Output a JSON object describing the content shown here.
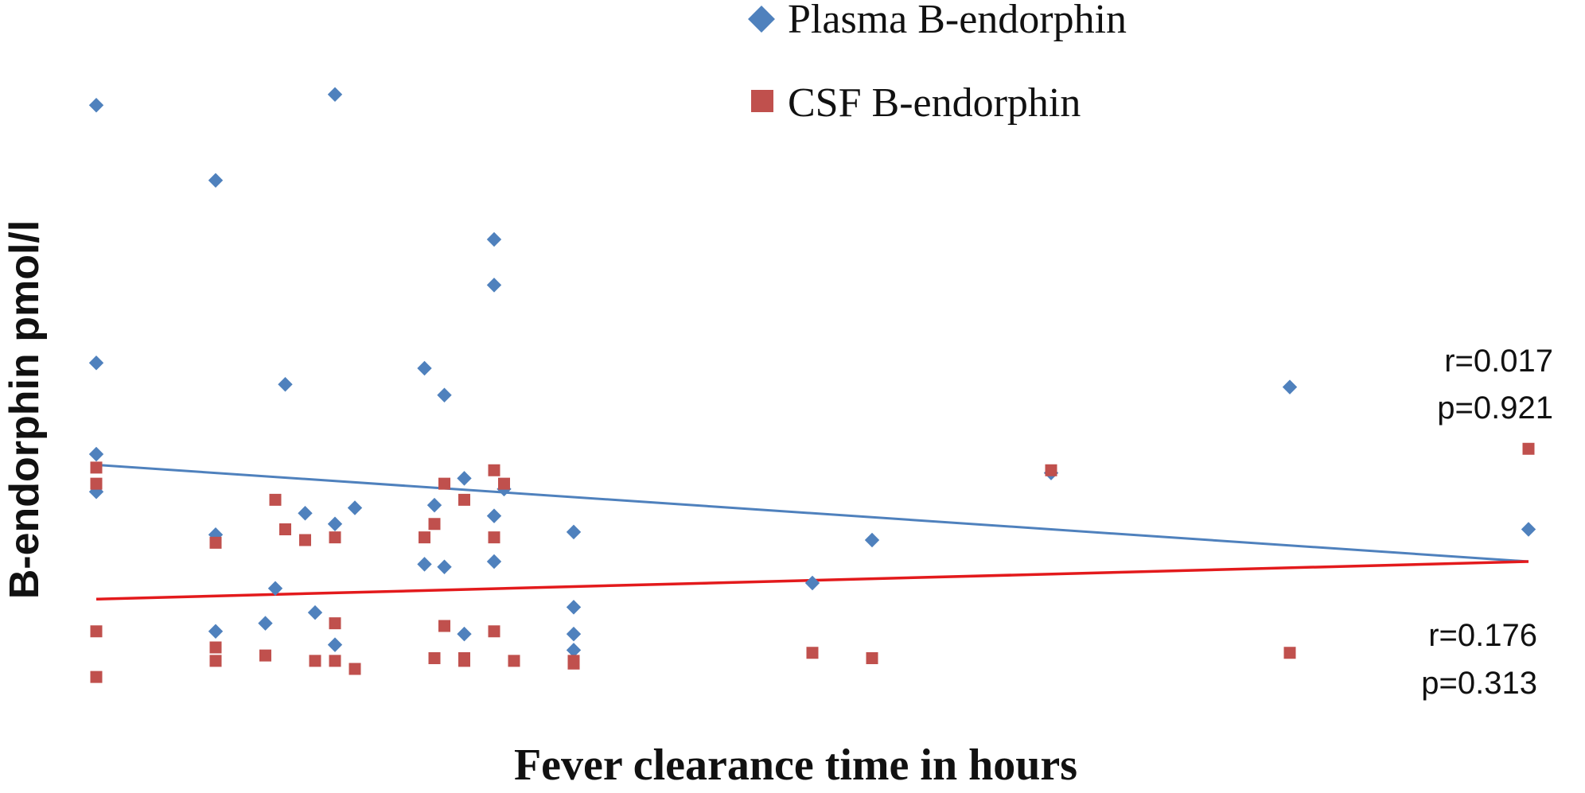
{
  "chart_data": {
    "type": "scatter",
    "xlabel": "Fever clearance time in hours",
    "ylabel": "B-endorphin pmol/l",
    "xlim": [
      0,
      72
    ],
    "ylim": [
      0,
      120
    ],
    "grid": false,
    "legend_position": "top-center",
    "colors": {
      "plasma": "#4F81BD",
      "csf": "#C0504D",
      "plasma_trend": "#4F81BD",
      "csf_trend": "#E31A1C"
    },
    "series": [
      {
        "name": "Plasma B-endorphin",
        "marker": "diamond",
        "color": "#4F81BD",
        "points": [
          [
            0,
            113
          ],
          [
            0,
            65
          ],
          [
            0,
            48
          ],
          [
            0,
            41
          ],
          [
            6,
            99
          ],
          [
            6,
            33
          ],
          [
            6,
            15
          ],
          [
            9,
            23
          ],
          [
            8.5,
            16.5
          ],
          [
            9.5,
            61
          ],
          [
            10.5,
            37
          ],
          [
            11,
            18.5
          ],
          [
            12,
            115
          ],
          [
            12,
            35
          ],
          [
            12,
            12.5
          ],
          [
            13,
            38
          ],
          [
            16.5,
            64
          ],
          [
            17,
            38.5
          ],
          [
            16.5,
            27.5
          ],
          [
            17.5,
            59
          ],
          [
            17.5,
            27
          ],
          [
            18.5,
            43.5
          ],
          [
            18.5,
            14.5
          ],
          [
            20,
            88
          ],
          [
            20,
            79.5
          ],
          [
            20,
            36.5
          ],
          [
            20,
            28
          ],
          [
            20.5,
            41.5
          ],
          [
            24,
            33.5
          ],
          [
            24,
            19.5
          ],
          [
            24,
            14.5
          ],
          [
            24,
            11.5
          ],
          [
            36,
            24
          ],
          [
            39,
            32
          ],
          [
            48,
            44.5
          ],
          [
            60,
            60.5
          ],
          [
            72,
            34
          ]
        ],
        "trendline": {
          "x": [
            0,
            72
          ],
          "y": [
            46,
            28
          ]
        },
        "stats": {
          "r": "r=0.017",
          "p": "p=0.921"
        }
      },
      {
        "name": "CSF B-endorphin",
        "marker": "square",
        "color": "#C0504D",
        "points": [
          [
            0,
            45.5
          ],
          [
            0,
            42.5
          ],
          [
            0,
            15
          ],
          [
            0,
            6.5
          ],
          [
            6,
            31.5
          ],
          [
            6,
            12
          ],
          [
            6,
            9.5
          ],
          [
            9,
            39.5
          ],
          [
            9.5,
            34
          ],
          [
            8.5,
            10.5
          ],
          [
            10.5,
            32
          ],
          [
            11,
            9.5
          ],
          [
            12,
            32.5
          ],
          [
            12,
            16.5
          ],
          [
            12,
            9.5
          ],
          [
            13,
            8
          ],
          [
            16.5,
            32.5
          ],
          [
            17,
            35
          ],
          [
            17,
            10
          ],
          [
            17.5,
            42.5
          ],
          [
            17.5,
            16
          ],
          [
            18.5,
            39.5
          ],
          [
            18.5,
            10
          ],
          [
            18.5,
            9.5
          ],
          [
            20,
            45
          ],
          [
            20,
            32.5
          ],
          [
            20,
            15
          ],
          [
            20.5,
            42.5
          ],
          [
            21,
            9.5
          ],
          [
            24,
            9.5
          ],
          [
            24,
            9
          ],
          [
            36,
            11
          ],
          [
            39,
            10
          ],
          [
            48,
            45
          ],
          [
            60,
            11
          ],
          [
            72,
            49
          ]
        ],
        "trendline": {
          "x": [
            0,
            72
          ],
          "y": [
            21,
            28
          ]
        },
        "stats": {
          "r": "r=0.176",
          "p": "p=0.313"
        }
      }
    ]
  }
}
